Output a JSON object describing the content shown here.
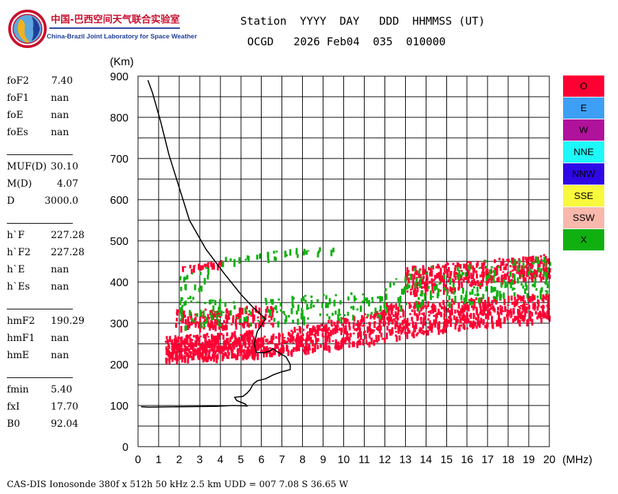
{
  "logo": {
    "title_cn": "中国-巴西空间天气联合实验室",
    "title_en": "China-Brazil Joint Laboratory for Space Weather"
  },
  "header": {
    "line1": "Station  YYYY  DAY   DDD  HHMMSS (UT)",
    "line2": "OCGD   2026 Feb04  035  010000"
  },
  "parameters": [
    {
      "label": "foF2",
      "value": "7.40"
    },
    {
      "label": "foF1",
      "value": "nan"
    },
    {
      "label": "foE",
      "value": "nan"
    },
    {
      "label": "foEs",
      "value": "nan"
    },
    {
      "label": "MUF(D)",
      "value": "30.10"
    },
    {
      "label": "M(D)",
      "value": "4.07"
    },
    {
      "label": "D",
      "value": "3000.0"
    },
    {
      "label": "h`F",
      "value": "227.28"
    },
    {
      "label": "h`F2",
      "value": "227.28"
    },
    {
      "label": "h`E",
      "value": "nan"
    },
    {
      "label": "h`Es",
      "value": "nan"
    },
    {
      "label": "hmF2",
      "value": "190.29"
    },
    {
      "label": "hmF1",
      "value": "nan"
    },
    {
      "label": "hmE",
      "value": "nan"
    },
    {
      "label": "fmin",
      "value": "5.40"
    },
    {
      "label": "fxI",
      "value": "17.70"
    },
    {
      "label": "B0",
      "value": "92.04"
    }
  ],
  "legend": [
    {
      "label": "O",
      "color": "#ff0033"
    },
    {
      "label": "E",
      "color": "#3da0f5"
    },
    {
      "label": "W",
      "color": "#b0129b"
    },
    {
      "label": "NNE",
      "color": "#1df8f8"
    },
    {
      "label": "NNW",
      "color": "#2e08e6"
    },
    {
      "label": "SSE",
      "color": "#f8f83c"
    },
    {
      "label": "SSW",
      "color": "#f9b8ac"
    },
    {
      "label": "X",
      "color": "#11b011"
    }
  ],
  "footer": "CAS-DIS Ionosonde 380f x 512h 50 kHz 2.5 km UDD = 007 7.08 S 36.65 W",
  "chart_data": {
    "type": "scatter",
    "title": "",
    "xlabel": "(MHz)",
    "ylabel": "(Km)",
    "xlim": [
      0,
      20
    ],
    "ylim": [
      0,
      900
    ],
    "x_ticks": [
      0,
      1,
      2,
      3,
      4,
      5,
      6,
      7,
      8,
      9,
      10,
      11,
      12,
      13,
      14,
      15,
      16,
      17,
      18,
      19,
      20
    ],
    "y_ticks": [
      0,
      100,
      200,
      300,
      400,
      500,
      600,
      700,
      800,
      900
    ],
    "grid": true,
    "series": [
      {
        "name": "O-trace",
        "color": "#ff0033",
        "bands": [
          {
            "x0": 1.3,
            "x1": 5.6,
            "lo0": 212,
            "lo1": 222,
            "hi0": 270,
            "hi1": 285,
            "density": 420
          },
          {
            "x0": 1.8,
            "x1": 6.6,
            "lo0": 288,
            "lo1": 300,
            "hi0": 335,
            "hi1": 345,
            "density": 170
          },
          {
            "x0": 5.6,
            "x1": 7.4,
            "lo0": 225,
            "lo1": 232,
            "hi0": 265,
            "hi1": 285,
            "density": 110
          },
          {
            "x0": 7.4,
            "x1": 12.0,
            "lo0": 233,
            "lo1": 255,
            "hi0": 290,
            "hi1": 335,
            "density": 300
          },
          {
            "x0": 12.0,
            "x1": 20.0,
            "lo0": 265,
            "lo1": 315,
            "hi0": 350,
            "hi1": 375,
            "density": 520
          },
          {
            "x0": 13.0,
            "x1": 20.0,
            "lo0": 370,
            "lo1": 415,
            "hi0": 440,
            "hi1": 470,
            "density": 380
          },
          {
            "x0": 1.8,
            "x1": 4.2,
            "lo0": 425,
            "lo1": 445,
            "hi0": 438,
            "hi1": 455,
            "density": 30
          }
        ]
      },
      {
        "name": "X-trace",
        "color": "#11b011",
        "bands": [
          {
            "x0": 2.0,
            "x1": 12.0,
            "lo0": 290,
            "lo1": 320,
            "hi0": 355,
            "hi1": 380,
            "density": 160
          },
          {
            "x0": 12.0,
            "x1": 20.0,
            "lo0": 330,
            "lo1": 370,
            "hi0": 430,
            "hi1": 470,
            "density": 180
          },
          {
            "x0": 2.0,
            "x1": 3.4,
            "lo0": 340,
            "lo1": 380,
            "hi0": 420,
            "hi1": 440,
            "density": 25
          },
          {
            "x0": 4.0,
            "x1": 9.8,
            "lo0": 440,
            "lo1": 480,
            "hi0": 460,
            "hi1": 497,
            "density": 35
          }
        ]
      },
      {
        "name": "profile",
        "color": "#000000",
        "points": [
          [
            0.15,
            97
          ],
          [
            0.5,
            96
          ],
          [
            2.0,
            97
          ],
          [
            3.8,
            98
          ],
          [
            4.6,
            100
          ],
          [
            5.3,
            99
          ],
          [
            5.2,
            104
          ],
          [
            4.8,
            112
          ],
          [
            4.7,
            120
          ],
          [
            5.1,
            122
          ],
          [
            5.3,
            130
          ],
          [
            5.45,
            138
          ],
          [
            5.6,
            152
          ],
          [
            5.8,
            160
          ],
          [
            6.2,
            165
          ],
          [
            6.6,
            175
          ],
          [
            7.0,
            182
          ],
          [
            7.4,
            187
          ],
          [
            7.4,
            200
          ],
          [
            7.2,
            218
          ],
          [
            6.85,
            228
          ],
          [
            6.55,
            238
          ],
          [
            6.4,
            232
          ],
          [
            6.1,
            228
          ],
          [
            5.75,
            229
          ],
          [
            5.65,
            250
          ],
          [
            5.8,
            280
          ],
          [
            6.2,
            310
          ],
          [
            6.0,
            320
          ],
          [
            5.6,
            338
          ],
          [
            5.0,
            370
          ],
          [
            4.2,
            420
          ],
          [
            3.3,
            480
          ],
          [
            2.5,
            550
          ],
          [
            2.0,
            630
          ],
          [
            1.5,
            710
          ],
          [
            1.1,
            790
          ],
          [
            0.7,
            860
          ],
          [
            0.48,
            890
          ]
        ]
      }
    ]
  }
}
